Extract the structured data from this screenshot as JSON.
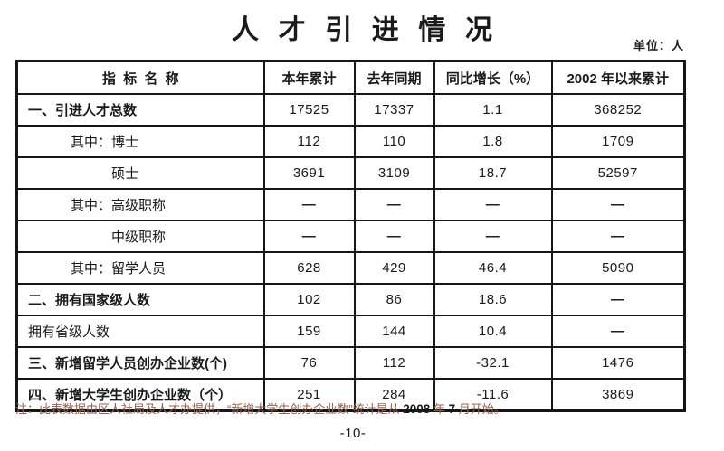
{
  "title": "人才引进情况",
  "unit_label": "单位：人",
  "page_number": "-10-",
  "colors": {
    "background": "#ffffff",
    "text": "#1a1a1a",
    "border": "#161616",
    "note_text": "#96604e"
  },
  "table": {
    "headers": [
      "指标名称",
      "本年累计",
      "去年同期",
      "同比增长（%）",
      "2002 年以来累计"
    ],
    "rows": [
      {
        "label": "一、引进人才总数",
        "indent": 0,
        "bold": true,
        "values": [
          "17525",
          "17337",
          "1.1",
          "368252"
        ]
      },
      {
        "label": "其中：博士",
        "indent": 1,
        "bold": false,
        "values": [
          "112",
          "110",
          "1.8",
          "1709"
        ]
      },
      {
        "label": "硕士",
        "indent": 2,
        "bold": false,
        "values": [
          "3691",
          "3109",
          "18.7",
          "52597"
        ]
      },
      {
        "label": "其中：高级职称",
        "indent": 1,
        "bold": false,
        "values": [
          "—",
          "—",
          "—",
          "—"
        ]
      },
      {
        "label": "中级职称",
        "indent": 2,
        "bold": false,
        "values": [
          "—",
          "—",
          "—",
          "—"
        ]
      },
      {
        "label": "其中：留学人员",
        "indent": 1,
        "bold": false,
        "values": [
          "628",
          "429",
          "46.4",
          "5090"
        ]
      },
      {
        "label": "二、拥有国家级人数",
        "indent": 0,
        "bold": true,
        "values": [
          "102",
          "86",
          "18.6",
          "—"
        ]
      },
      {
        "label": "拥有省级人数",
        "indent": 0,
        "bold": false,
        "values": [
          "159",
          "144",
          "10.4",
          "—"
        ]
      },
      {
        "label": "三、新增留学人员创办企业数(个)",
        "indent": 0,
        "bold": true,
        "values": [
          "76",
          "112",
          "-32.1",
          "1476"
        ]
      },
      {
        "label": "四、新增大学生创办企业数（个）",
        "indent": 0,
        "bold": true,
        "values": [
          "251",
          "284",
          "-11.6",
          "3869"
        ]
      }
    ]
  },
  "note": {
    "parts": [
      {
        "text": "注：此表数据由区人社局及人才办提供，“新增大学生创办企业数”统计是从 ",
        "style": "cn"
      },
      {
        "text": "2008",
        "style": "num"
      },
      {
        "text": " 年 ",
        "style": "cn"
      },
      {
        "text": "7",
        "style": "num"
      },
      {
        "text": " 月开始。",
        "style": "cn"
      }
    ]
  }
}
